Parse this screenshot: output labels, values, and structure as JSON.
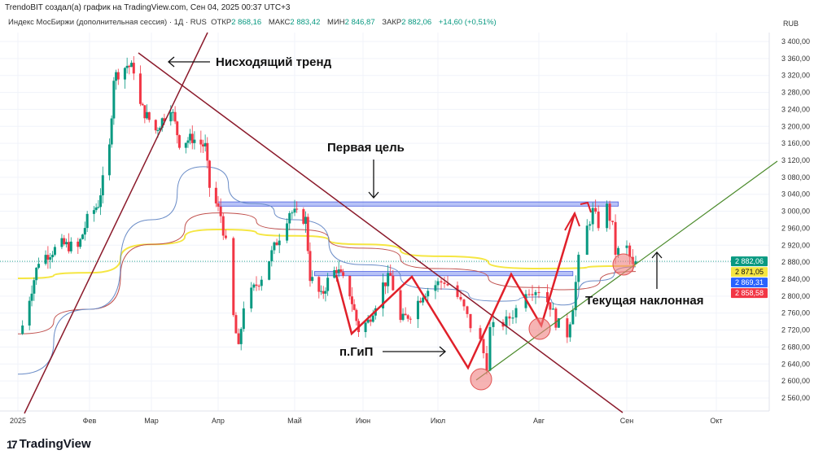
{
  "header": {
    "credit": "TrendoBIT создал(а) график на TradingView.com, Сен 04, 2025 00:37 UTC+3",
    "symbol": "Индекс МосБиржи (дополнительная сессия) · 1Д · RUS",
    "open_label": "ОТКР",
    "open": "2 868,16",
    "high_label": "МАКС",
    "high": "2 883,42",
    "low_label": "МИН",
    "low": "2 846,87",
    "close_label": "ЗАКР",
    "close": "2 882,06",
    "change": "+14,60 (+0,51%)",
    "currency": "RUB"
  },
  "footer": {
    "logo_text": "TradingView",
    "logo_mark": "17"
  },
  "colors": {
    "up": "#089981",
    "down": "#f23645",
    "ma_yellow": "#f5e642",
    "ma_red": "#c0504d",
    "ma_blue": "#6a8cc7",
    "trendline": "#8b1a2b",
    "support": "#4a8a2a",
    "zone": "#7b8ff0"
  },
  "chart_data": {
    "type": "candlestick",
    "ylim": [
      2540,
      3420
    ],
    "y_ticks": [
      "3 400,00",
      "3 360,00",
      "3 320,00",
      "3 280,00",
      "3 240,00",
      "3 200,00",
      "3 160,00",
      "3 120,00",
      "3 080,00",
      "3 040,00",
      "3 000,00",
      "2 960,00",
      "2 920,00",
      "2 880,00",
      "2 840,00",
      "2 800,00",
      "2 760,00",
      "2 720,00",
      "2 680,00",
      "2 640,00",
      "2 600,00",
      "2 560,00"
    ],
    "y_tick_values": [
      3400,
      3360,
      3320,
      3280,
      3240,
      3200,
      3160,
      3120,
      3080,
      3040,
      3000,
      2960,
      2920,
      2880,
      2840,
      2800,
      2760,
      2720,
      2680,
      2640,
      2600,
      2560
    ],
    "x_ticks": [
      {
        "date": "2025-01-01",
        "label": "2025"
      },
      {
        "date": "2025-02-01",
        "label": "Фев"
      },
      {
        "date": "2025-03-01",
        "label": "Мар"
      },
      {
        "date": "2025-04-01",
        "label": "Апр"
      },
      {
        "date": "2025-05-01",
        "label": "Май"
      },
      {
        "date": "2025-06-01",
        "label": "Июн"
      },
      {
        "date": "2025-07-01",
        "label": "Июл"
      },
      {
        "date": "2025-08-01",
        "label": "Авг"
      },
      {
        "date": "2025-09-01",
        "label": "Сен"
      },
      {
        "date": "2025-10-01",
        "label": "Окт"
      }
    ],
    "close_path": [
      [
        "2025-01-03",
        2731
      ],
      [
        "2025-01-10",
        2884
      ],
      [
        "2025-01-20",
        2922
      ],
      [
        "2025-01-27",
        2913
      ],
      [
        "2025-01-31",
        2980
      ],
      [
        "2025-02-05",
        3018
      ],
      [
        "2025-02-10",
        3150
      ],
      [
        "2025-02-12",
        3316
      ],
      [
        "2025-02-18",
        3344
      ],
      [
        "2025-02-21",
        3335
      ],
      [
        "2025-02-24",
        3248
      ],
      [
        "2025-03-03",
        3191
      ],
      [
        "2025-03-10",
        3248
      ],
      [
        "2025-03-14",
        3162
      ],
      [
        "2025-03-20",
        3172
      ],
      [
        "2025-03-26",
        3152
      ],
      [
        "2025-03-28",
        3057
      ],
      [
        "2025-04-02",
        2990
      ],
      [
        "2025-04-04",
        2922
      ],
      [
        "2025-04-07",
        2750
      ],
      [
        "2025-04-09",
        2673
      ],
      [
        "2025-04-11",
        2779
      ],
      [
        "2025-04-18",
        2846
      ],
      [
        "2025-04-25",
        2942
      ],
      [
        "2025-04-29",
        3000
      ],
      [
        "2025-05-06",
        2980
      ],
      [
        "2025-05-08",
        2846
      ],
      [
        "2025-05-13",
        2798
      ],
      [
        "2025-05-16",
        2836
      ],
      [
        "2025-05-20",
        2865
      ],
      [
        "2025-05-26",
        2807
      ],
      [
        "2025-05-30",
        2721
      ],
      [
        "2025-06-03",
        2740
      ],
      [
        "2025-06-09",
        2827
      ],
      [
        "2025-06-12",
        2846
      ],
      [
        "2025-06-16",
        2740
      ],
      [
        "2025-06-20",
        2759
      ],
      [
        "2025-06-25",
        2807
      ],
      [
        "2025-06-30",
        2827
      ],
      [
        "2025-07-03",
        2836
      ],
      [
        "2025-07-07",
        2798
      ],
      [
        "2025-07-09",
        2769
      ],
      [
        "2025-07-11",
        2731
      ],
      [
        "2025-07-14",
        2692
      ],
      [
        "2025-07-16",
        2639
      ],
      [
        "2025-07-17",
        2721
      ],
      [
        "2025-07-22",
        2740
      ],
      [
        "2025-07-25",
        2769
      ],
      [
        "2025-07-28",
        2817
      ],
      [
        "2025-08-01",
        2817
      ],
      [
        "2025-08-05",
        2779
      ],
      [
        "2025-08-07",
        2740
      ],
      [
        "2025-08-11",
        2711
      ],
      [
        "2025-08-13",
        2779
      ],
      [
        "2025-08-15",
        2884
      ],
      [
        "2025-08-18",
        2961
      ],
      [
        "2025-08-20",
        3000
      ],
      [
        "2025-08-22",
        2970
      ],
      [
        "2025-08-25",
        3009
      ],
      [
        "2025-08-27",
        2961
      ],
      [
        "2025-08-28",
        2903
      ],
      [
        "2025-09-01",
        2913
      ],
      [
        "2025-09-03",
        2868
      ],
      [
        "2025-09-04",
        2882
      ]
    ],
    "moving_averages": [
      {
        "color": "#f5e642",
        "points": [
          [
            "2025-01-01",
            2842
          ],
          [
            "2025-02-01",
            2855
          ],
          [
            "2025-03-01",
            2922
          ],
          [
            "2025-04-01",
            2957
          ],
          [
            "2025-05-01",
            2942
          ],
          [
            "2025-06-01",
            2922
          ],
          [
            "2025-07-01",
            2894
          ],
          [
            "2025-08-01",
            2865
          ],
          [
            "2025-09-04",
            2871
          ]
        ]
      },
      {
        "color": "#c0504d",
        "points": [
          [
            "2025-01-01",
            2711
          ],
          [
            "2025-02-01",
            2769
          ],
          [
            "2025-03-01",
            2922
          ],
          [
            "2025-04-01",
            2996
          ],
          [
            "2025-05-01",
            2957
          ],
          [
            "2025-06-01",
            2913
          ],
          [
            "2025-07-01",
            2865
          ],
          [
            "2025-08-01",
            2820
          ],
          [
            "2025-08-10",
            2815
          ],
          [
            "2025-09-04",
            2858
          ]
        ]
      },
      {
        "color": "#6a8cc7",
        "points": [
          [
            "2025-01-01",
            2616
          ],
          [
            "2025-02-01",
            2769
          ],
          [
            "2025-03-01",
            2980
          ],
          [
            "2025-03-25",
            3105
          ],
          [
            "2025-04-15",
            3018
          ],
          [
            "2025-05-01",
            2980
          ],
          [
            "2025-06-01",
            2874
          ],
          [
            "2025-07-01",
            2817
          ],
          [
            "2025-07-20",
            2788
          ],
          [
            "2025-08-01",
            2798
          ],
          [
            "2025-08-10",
            2779
          ],
          [
            "2025-08-20",
            2836
          ],
          [
            "2025-09-04",
            2869
          ]
        ]
      }
    ],
    "price_labels": [
      {
        "value": 2882.06,
        "text": "2 882,06",
        "color": "#089981"
      },
      {
        "value": 2871.05,
        "text": "2 871,05",
        "color": "#f5e642"
      },
      {
        "value": 2869.31,
        "text": "2 869,31",
        "color": "#2962ff"
      },
      {
        "value": 2858.58,
        "text": "2 858,58",
        "color": "#f23645"
      }
    ],
    "zones": [
      {
        "from": "2025-04-01",
        "to": "2025-08-29",
        "low": 3012,
        "high": 3022
      },
      {
        "from": "2025-05-10",
        "to": "2025-08-13",
        "low": 2848,
        "high": 2858
      }
    ],
    "annotations": {
      "downtrend": "Нисходящий тренд",
      "first_target": "Первая цель",
      "head_shoulders": "п.ГиП",
      "current_slope": "Текущая наклонная"
    }
  }
}
